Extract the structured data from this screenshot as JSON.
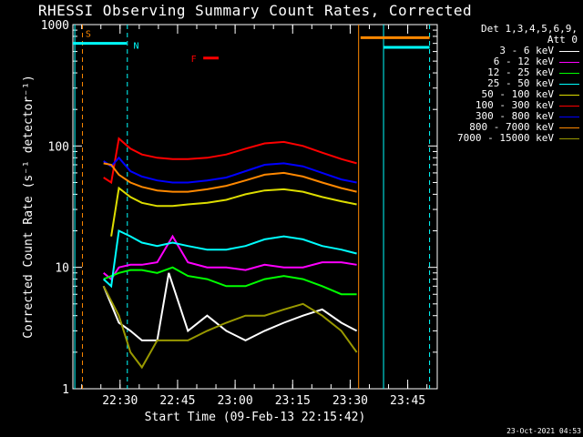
{
  "chart_data": {
    "type": "line",
    "title": "RHESSI Observing Summary Count Rates, Corrected",
    "xlabel": "Start Time (09-Feb-13 22:15:42)",
    "ylabel": "Corrected Count Rate (s⁻¹ detector⁻¹)",
    "y_scale": "log",
    "ylim": [
      1,
      1000
    ],
    "y_ticks": [
      1,
      10,
      100,
      1000
    ],
    "y_tick_labels": [
      "1",
      "10",
      "100",
      "1000"
    ],
    "x_unit": "minutes since 22:15:42",
    "xlim": [
      0,
      95
    ],
    "x_ticks": [
      12.3,
      27.3,
      42.3,
      57.3,
      72.3,
      87.3
    ],
    "x_tick_labels": [
      "22:30",
      "22:45",
      "23:00",
      "23:15",
      "23:30",
      "23:45"
    ],
    "legend_header": [
      "Det 1,3,4,5,6,9,",
      "Att 0"
    ],
    "legend_position": "right",
    "series": [
      {
        "name": "3 - 6 keV",
        "color": "#ffffff",
        "x": [
          8,
          12,
          15,
          18,
          22,
          25,
          30,
          35,
          40,
          45,
          50,
          55,
          60,
          65,
          70,
          74
        ],
        "y": [
          7,
          3.5,
          3,
          2.5,
          2.5,
          9,
          3,
          4,
          3,
          2.5,
          3,
          3.5,
          4,
          4.5,
          3.5,
          3
        ]
      },
      {
        "name": "6 - 12 keV",
        "color": "#ff00ff",
        "x": [
          8,
          10,
          12,
          15,
          18,
          22,
          26,
          30,
          35,
          40,
          45,
          50,
          55,
          60,
          65,
          70,
          74
        ],
        "y": [
          9,
          8,
          10,
          10.5,
          10.5,
          11,
          18,
          11,
          10,
          10,
          9.5,
          10.5,
          10,
          10,
          11,
          11,
          10.5
        ]
      },
      {
        "name": "12 - 25 keV",
        "color": "#00ff00",
        "x": [
          8,
          12,
          15,
          18,
          22,
          26,
          30,
          35,
          40,
          45,
          50,
          55,
          60,
          65,
          70,
          74
        ],
        "y": [
          8,
          9,
          9.5,
          9.5,
          9,
          10,
          8.5,
          8,
          7,
          7,
          8,
          8.5,
          8,
          7,
          6,
          6
        ]
      },
      {
        "name": "25 - 50 keV",
        "color": "#00ffff",
        "x": [
          8,
          10,
          12,
          15,
          18,
          22,
          26,
          30,
          35,
          40,
          45,
          50,
          55,
          60,
          65,
          70,
          74
        ],
        "y": [
          8,
          7,
          20,
          18,
          16,
          15,
          16,
          15,
          14,
          14,
          15,
          17,
          18,
          17,
          15,
          14,
          13
        ]
      },
      {
        "name": "50 - 100 keV",
        "color": "#dddd00",
        "x": [
          10,
          12,
          15,
          18,
          22,
          26,
          30,
          35,
          40,
          45,
          50,
          55,
          60,
          65,
          70,
          74
        ],
        "y": [
          18,
          45,
          38,
          34,
          32,
          32,
          33,
          34,
          36,
          40,
          43,
          44,
          42,
          38,
          35,
          33
        ]
      },
      {
        "name": "100 - 300 keV",
        "color": "#ff0000",
        "x": [
          8,
          10,
          12,
          15,
          18,
          22,
          26,
          30,
          35,
          40,
          45,
          50,
          55,
          60,
          65,
          70,
          74
        ],
        "y": [
          55,
          50,
          115,
          95,
          85,
          80,
          78,
          78,
          80,
          85,
          95,
          105,
          108,
          100,
          88,
          78,
          72
        ]
      },
      {
        "name": "300 - 800 keV",
        "color": "#0000ff",
        "x": [
          8,
          10,
          12,
          15,
          18,
          22,
          26,
          30,
          35,
          40,
          45,
          50,
          55,
          60,
          65,
          70,
          74
        ],
        "y": [
          75,
          68,
          80,
          62,
          56,
          52,
          50,
          50,
          52,
          55,
          62,
          70,
          72,
          68,
          60,
          53,
          50
        ]
      },
      {
        "name": "800 - 7000 keV",
        "color": "#ff8800",
        "x": [
          8,
          10,
          12,
          15,
          18,
          22,
          26,
          30,
          35,
          40,
          45,
          50,
          55,
          60,
          65,
          70,
          74
        ],
        "y": [
          72,
          70,
          58,
          50,
          46,
          43,
          42,
          42,
          44,
          47,
          52,
          58,
          60,
          56,
          50,
          45,
          42
        ]
      },
      {
        "name": "7000 - 15000 keV",
        "color": "#999900",
        "x": [
          8,
          12,
          15,
          18,
          22,
          25,
          30,
          35,
          40,
          45,
          50,
          55,
          60,
          65,
          70,
          74
        ],
        "y": [
          7,
          4,
          2,
          1.5,
          2.5,
          2.5,
          2.5,
          3,
          3.5,
          4,
          4,
          4.5,
          5,
          4,
          3,
          2
        ]
      }
    ],
    "vlines": [
      {
        "x": 0.5,
        "color": "#00ffff",
        "style": "solid"
      },
      {
        "x": 2.5,
        "color": "#ff8800",
        "style": "dashed"
      },
      {
        "x": 14.2,
        "color": "#00ffff",
        "style": "dashed"
      },
      {
        "x": 74.5,
        "color": "#ff8800",
        "style": "solid"
      },
      {
        "x": 81,
        "color": "#00ffff",
        "style": "solid"
      },
      {
        "x": 93,
        "color": "#00ffff",
        "style": "dashed"
      }
    ],
    "flag_bars": [
      {
        "x0": 0,
        "x1": 14,
        "y": 700,
        "color": "#00ffff"
      },
      {
        "x0": 75,
        "x1": 93,
        "y": 780,
        "color": "#ff8800"
      },
      {
        "x0": 81,
        "x1": 93,
        "y": 650,
        "color": "#00ffff"
      },
      {
        "x0": 34,
        "x1": 38,
        "y": 530,
        "color": "#ff0000"
      }
    ],
    "annotations": [
      {
        "text": "S",
        "x": 4,
        "y": 850,
        "color": "#ff8800"
      },
      {
        "text": "N",
        "x": 16.5,
        "y": 680,
        "color": "#00ffff"
      },
      {
        "text": "F",
        "x": 31.5,
        "y": 530,
        "color": "#ff0000"
      }
    ]
  },
  "footer_date": "23-Oct-2021 04:53"
}
